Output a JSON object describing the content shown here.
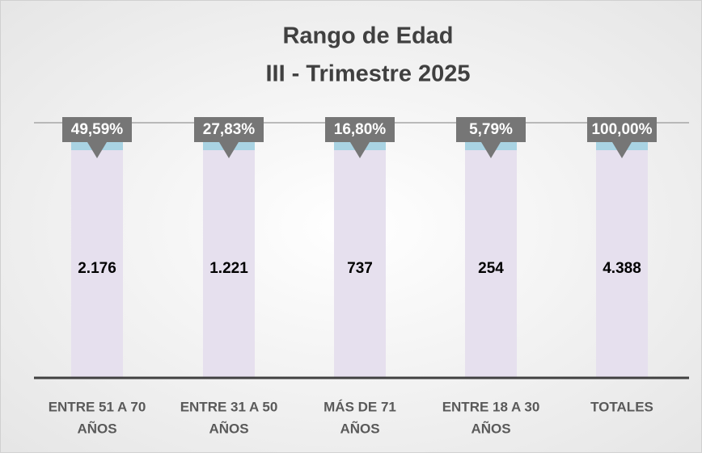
{
  "chart_data": {
    "type": "bar",
    "title": "Rango de Edad",
    "subtitle": "III - Trimestre 2025",
    "categories": [
      [
        "ENTRE 51 A 70",
        "AÑOS"
      ],
      [
        "ENTRE 31 A 50",
        "AÑOS"
      ],
      [
        "MÁS DE 71",
        "AÑOS"
      ],
      [
        "ENTRE 18 A 30",
        "AÑOS"
      ],
      [
        "TOTALES"
      ]
    ],
    "values": [
      2176,
      1221,
      737,
      254,
      4388
    ],
    "value_labels": [
      "2.176",
      "1.221",
      "737",
      "254",
      "4.388"
    ],
    "color": "#e6e0ee",
    "percentages": [
      49.59,
      27.83,
      16.8,
      5.79,
      100
    ],
    "percentage_labels": [
      "49,59%",
      "27,83%",
      "16,80%",
      "5,79%",
      "100,00%"
    ],
    "ylim": [
      0,
      250
    ]
  }
}
